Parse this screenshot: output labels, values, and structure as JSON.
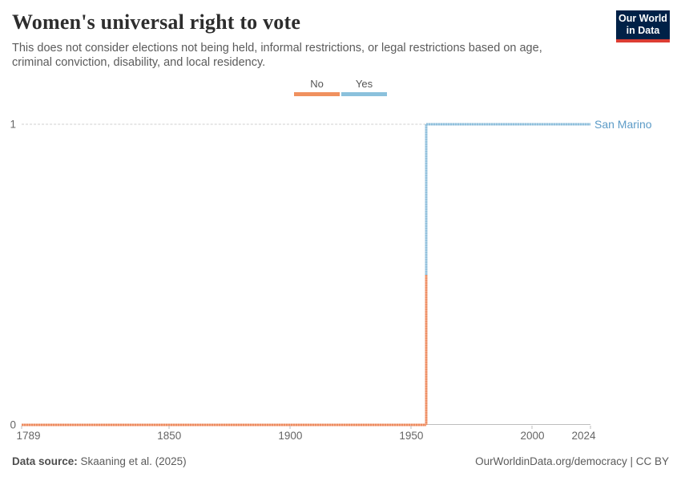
{
  "header": {
    "title": "Women's universal right to vote",
    "subtitle_lines": [
      "This does not consider elections not being held, informal restrictions, or legal restrictions based on age,",
      "criminal conviction, disability, and local residency."
    ],
    "logo": {
      "line1": "Our World",
      "line2": "in Data",
      "bg_color": "#002147",
      "accent_color": "#dc3d33"
    }
  },
  "legend": {
    "items": [
      {
        "label": "No",
        "color": "#f0915f"
      },
      {
        "label": "Yes",
        "color": "#8bc1dc"
      }
    ]
  },
  "chart_data": {
    "type": "line",
    "step": true,
    "title": "Women's universal right to vote",
    "entity": "San Marino",
    "entity_label_color": "#5c9bc7",
    "x_axis": {
      "min": 1789,
      "max": 2024,
      "tick_labels": [
        "1789",
        "1850",
        "1900",
        "1950",
        "2000",
        "2024"
      ],
      "tick_years": [
        1789,
        1850,
        1900,
        1950,
        2000,
        2024
      ]
    },
    "y_axis": {
      "min": 0,
      "max": 1,
      "tick_labels": [
        "0",
        "1"
      ]
    },
    "grid": "dashed horizontal line at y=1",
    "legend_position": "top-center",
    "series": [
      {
        "name": "San Marino",
        "points": [
          {
            "year": 1789,
            "value": 0
          },
          {
            "year": 1956,
            "value": 0
          },
          {
            "year": 1956,
            "value": 1
          },
          {
            "year": 2024,
            "value": 1
          }
        ],
        "value_meaning": {
          "0": "No",
          "1": "Yes"
        },
        "value_colors": {
          "0": "#f0915f",
          "1": "#8bc1dc"
        }
      }
    ],
    "transition_year": 1956
  },
  "footer": {
    "source_label": "Data source:",
    "source_value": "Skaaning et al. (2025)",
    "credit": "OurWorldinData.org/democracy | CC BY"
  }
}
